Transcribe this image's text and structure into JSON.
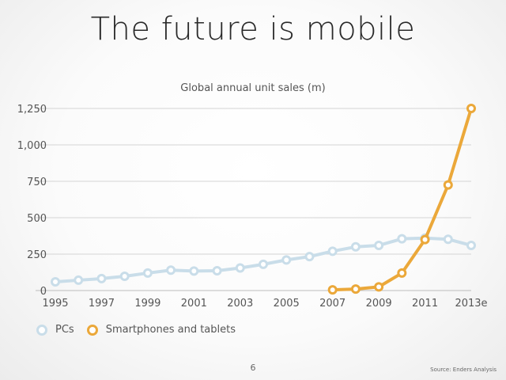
{
  "slide": {
    "title": "The future is mobile",
    "page_number": "6",
    "source": "Source: Enders Analysis"
  },
  "chart_data": {
    "type": "line",
    "title": "Global annual unit sales (m)",
    "xlabel": "",
    "ylabel": "",
    "x": [
      "1995",
      "1996",
      "1997",
      "1998",
      "1999",
      "2000",
      "2001",
      "2002",
      "2003",
      "2004",
      "2005",
      "2006",
      "2007",
      "2008",
      "2009",
      "2010",
      "2011",
      "2012",
      "2013e"
    ],
    "x_tick_labels": [
      "1995",
      "1997",
      "1999",
      "2001",
      "2003",
      "2005",
      "2007",
      "2009",
      "2011",
      "2013e"
    ],
    "y_ticks": [
      0,
      250,
      500,
      750,
      1000,
      1250
    ],
    "y_tick_labels": [
      "0",
      "250",
      "500",
      "750",
      "1,000",
      "1,250"
    ],
    "ylim": [
      0,
      1250
    ],
    "grid": true,
    "legend_position": "bottom-left",
    "series": [
      {
        "name": "PCs",
        "color": "#c9dde9",
        "values": [
          60,
          71,
          82,
          98,
          120,
          140,
          134,
          136,
          155,
          180,
          210,
          233,
          270,
          300,
          310,
          355,
          360,
          352,
          310
        ]
      },
      {
        "name": "Smartphones and tablets",
        "color": "#eba83a",
        "values": [
          null,
          null,
          null,
          null,
          null,
          null,
          null,
          null,
          null,
          null,
          null,
          null,
          5,
          10,
          25,
          120,
          350,
          725,
          1250
        ]
      }
    ]
  }
}
